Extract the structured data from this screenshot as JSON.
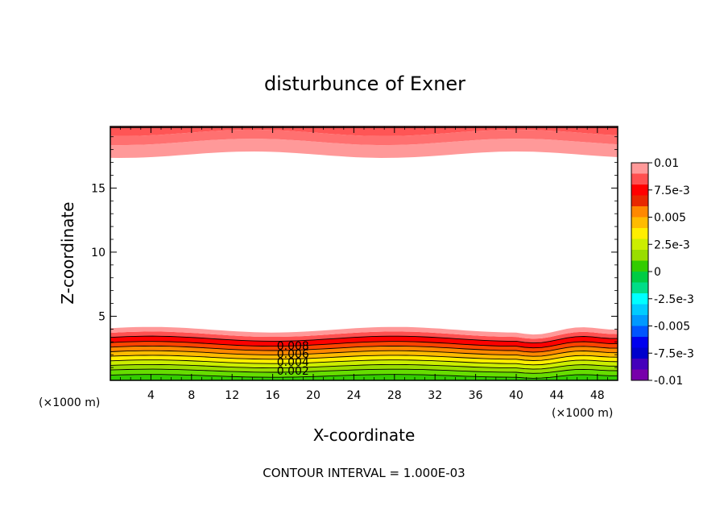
{
  "chart_data": {
    "type": "contour",
    "title": "disturbunce of Exner",
    "xlabel": "X-coordinate",
    "ylabel": "Z-coordinate",
    "x_unit": "(×1000 m)",
    "x_unit_right": "(×1000 m)",
    "footer": "CONTOUR INTERVAL = 1.000E-03",
    "xlim": [
      0,
      50
    ],
    "ylim": [
      0,
      19.8
    ],
    "x_ticks": [
      4,
      8,
      12,
      16,
      20,
      24,
      28,
      32,
      36,
      40,
      44,
      48
    ],
    "y_ticks": [
      5,
      10,
      15
    ],
    "contour_interval": 0.001,
    "contour_labels": [
      {
        "text": "0.008",
        "x": 18,
        "level": 0.008
      },
      {
        "text": "0.006",
        "x": 18,
        "level": 0.006
      },
      {
        "text": "0.004",
        "x": 18,
        "level": 0.004
      },
      {
        "text": "0.002",
        "x": 18,
        "level": 0.002
      }
    ],
    "colorbar": {
      "tick_labels": [
        "0.01",
        "7.5e-3",
        "0.005",
        "2.5e-3",
        "0",
        "-2.5e-3",
        "-0.005",
        "-7.5e-3",
        "-0.01"
      ],
      "tick_values": [
        0.01,
        0.0075,
        0.005,
        0.0025,
        0,
        -0.0025,
        -0.005,
        -0.0075,
        -0.01
      ],
      "colors_top_to_bottom": [
        "#ff9999",
        "#ff5050",
        "#ff0000",
        "#e82800",
        "#ff8800",
        "#ffbb00",
        "#ffee00",
        "#ccee00",
        "#99dd00",
        "#33cc00",
        "#00cc44",
        "#00dd88",
        "#00ffff",
        "#00ccff",
        "#0099ff",
        "#0055ff",
        "#0000ee",
        "#0000cc",
        "#4400bb",
        "#7700aa"
      ]
    }
  }
}
